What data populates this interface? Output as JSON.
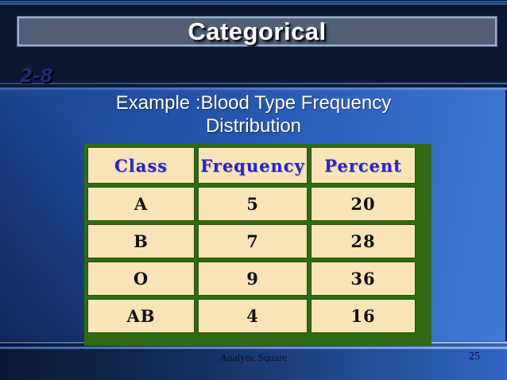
{
  "slide": {
    "title": "Categorical",
    "section_badge": "2-8",
    "subtitle": {
      "line1": "Example :Blood Type Frequency",
      "line2": "Distribution"
    }
  },
  "table": {
    "headers": [
      "Class",
      "Frequency",
      "Percent"
    ],
    "rows": [
      {
        "class": "A",
        "frequency": "5",
        "percent": "20"
      },
      {
        "class": "B",
        "frequency": "7",
        "percent": "28"
      },
      {
        "class": "O",
        "frequency": "9",
        "percent": "36"
      },
      {
        "class": "AB",
        "frequency": "4",
        "percent": "16"
      }
    ]
  },
  "footer": {
    "label": "Analytic Square",
    "page_number": "25"
  },
  "colors": {
    "background_navy": "#0c1830",
    "title_text": "#ffffff",
    "title_box_fill": "#535f77",
    "title_box_border": "#a3b1c4",
    "badge_text": "#1c2d73",
    "content_panel_blue_left": "#1c448f",
    "content_panel_blue_right": "#3f7ad6",
    "table_frame_green": "#2f6b14",
    "cell_background": "#f9e4b7",
    "header_text_blue": "#2525cf",
    "data_text": "#111111",
    "footer_text": "#0b1226"
  }
}
